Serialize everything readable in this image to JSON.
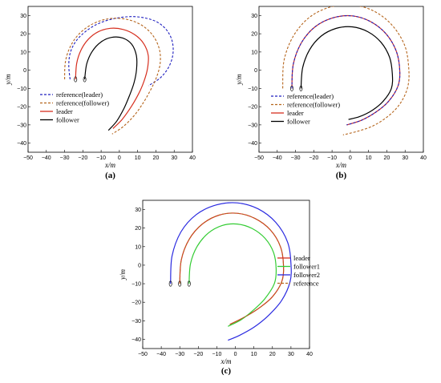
{
  "colors": {
    "reference_leader": "#1f1fbf",
    "reference_follower": "#b5651d",
    "leader": "#d62f1f",
    "follower": "#000000",
    "follower1": "#33cc33",
    "follower2": "#2a2ae0",
    "reference": "#b5651d"
  },
  "chart_data": [
    {
      "type": "line",
      "panel_label": "(a)",
      "xlabel": "x/m",
      "ylabel": "y/m",
      "xlim": [
        -50,
        40
      ],
      "ylim": [
        -45,
        35
      ],
      "xticks": [
        "−50",
        "−40",
        "−30",
        "−20",
        "−10",
        "0",
        "10",
        "20",
        "30",
        "40"
      ],
      "yticks": [
        "30",
        "20",
        "10",
        "0",
        "−10",
        "−20",
        "−30",
        "−40"
      ],
      "legend_position": "middle-left",
      "series": [
        {
          "name": "reference(leader)",
          "style": "dashed",
          "color_key": "reference_leader",
          "x": [
            -27,
            -27.7,
            -26.9,
            -23.8,
            -18.3,
            -11.2,
            -2.8,
            6.1,
            14.4,
            21.2,
            26.2,
            29.0,
            29.3,
            27.0,
            22.4,
            15.9
          ],
          "y": [
            -5,
            2.3,
            9.5,
            15.9,
            21.4,
            25.7,
            28.3,
            29.4,
            28.6,
            26.1,
            21.6,
            15.6,
            8.6,
            1.7,
            -4.2,
            -8.5
          ]
        },
        {
          "name": "reference(follower)",
          "style": "dashed",
          "color_key": "reference_follower",
          "x": [
            -30,
            -29.6,
            -27.1,
            -22.6,
            -16.4,
            -8.9,
            -0.9,
            7.0,
            13.8,
            19.0,
            22.0,
            22.3,
            20.3,
            17.0,
            13.0,
            8.0,
            2.0,
            -4.0
          ],
          "y": [
            -5,
            4.3,
            12.5,
            19.3,
            24.4,
            27.6,
            28.5,
            27.1,
            23.6,
            18.1,
            11.1,
            3.5,
            -4.0,
            -11.0,
            -18.0,
            -25.0,
            -31.0,
            -35.0
          ]
        },
        {
          "name": "leader",
          "style": "solid",
          "color_key": "leader",
          "x": [
            -24,
            -23.4,
            -21.0,
            -16.9,
            -11.4,
            -4.9,
            1.9,
            8.4,
            13.3,
            15.8,
            15.4,
            13.5,
            10.5,
            6.5,
            1.5,
            -3.5
          ],
          "y": [
            -5,
            3.6,
            11.1,
            17.1,
            21.2,
            23.0,
            22.4,
            19.5,
            14.6,
            8.1,
            1.0,
            -6.0,
            -13.0,
            -20.0,
            -27.0,
            -32.0
          ]
        },
        {
          "name": "follower",
          "style": "solid",
          "color_key": "follower",
          "x": [
            -19,
            -17.9,
            -14.9,
            -10.2,
            -4.4,
            1.8,
            6.7,
            9.3,
            9.4,
            8.0,
            5.5,
            2.5,
            -1.5,
            -6.0
          ],
          "y": [
            -5,
            3.4,
            10.3,
            15.4,
            18.0,
            17.7,
            14.3,
            8.1,
            0.5,
            -7.0,
            -14.0,
            -21.0,
            -28.0,
            -33.0
          ]
        }
      ]
    },
    {
      "type": "line",
      "panel_label": "(b)",
      "xlabel": "x/m",
      "ylabel": "y/m",
      "xlim": [
        -50,
        40
      ],
      "ylim": [
        -45,
        35
      ],
      "xticks": [
        "−50",
        "−40",
        "−30",
        "−20",
        "−10",
        "0",
        "10",
        "20",
        "30",
        "40"
      ],
      "yticks": [
        "30",
        "20",
        "10",
        "0",
        "−10",
        "−20",
        "−30",
        "−40"
      ],
      "legend_position": "lower-left",
      "series": [
        {
          "name": "reference(leader)",
          "style": "dashed",
          "color_key": "reference_leader",
          "x": [
            -32,
            -31.2,
            -26.8,
            -19.3,
            -9.6,
            1.0,
            11.2,
            19.7,
            25.3,
            27.1,
            26.0,
            21.0,
            14.0,
            6.0,
            -2.0
          ],
          "y": [
            -10,
            3.3,
            15.0,
            23.8,
            28.7,
            29.8,
            26.6,
            19.8,
            10.1,
            -0.8,
            -9.0,
            -17.0,
            -23.0,
            -27.5,
            -30.0
          ]
        },
        {
          "name": "reference(follower)",
          "style": "dashed",
          "color_key": "reference_follower",
          "x": [
            -37,
            -36.3,
            -31.2,
            -22.5,
            -11.2,
            1.0,
            12.8,
            22.8,
            29.8,
            32.0,
            31.5,
            27.5,
            21.0,
            12.5,
            4.0,
            -4.0
          ],
          "y": [
            -10,
            5.3,
            18.7,
            28.9,
            34.6,
            35.8,
            32.5,
            24.8,
            13.5,
            1.0,
            -9.0,
            -18.0,
            -25.0,
            -30.5,
            -33.5,
            -35.5
          ]
        },
        {
          "name": "leader",
          "style": "solid",
          "color_key": "leader",
          "x": [
            -32,
            -31.2,
            -26.8,
            -19.3,
            -9.6,
            1.0,
            11.2,
            19.7,
            25.3,
            27.1,
            26.0,
            21.0,
            14.0,
            6.0,
            -2.0
          ],
          "y": [
            -10,
            3.3,
            15.0,
            23.8,
            28.7,
            29.8,
            26.6,
            19.8,
            10.1,
            -0.8,
            -9.0,
            -17.0,
            -23.0,
            -27.5,
            -30.0
          ]
        },
        {
          "name": "follower",
          "style": "solid",
          "color_key": "follower",
          "x": [
            -27,
            -26.1,
            -22.3,
            -16.0,
            -7.9,
            1.0,
            9.6,
            16.8,
            21.5,
            23.0,
            22.5,
            18.0,
            12.0,
            5.0,
            -1.0
          ],
          "y": [
            -10,
            1.3,
            11.2,
            18.7,
            22.9,
            23.8,
            21.1,
            15.3,
            7.1,
            -2.0,
            -10.0,
            -17.0,
            -22.0,
            -25.5,
            -27.0
          ]
        }
      ]
    },
    {
      "type": "line",
      "panel_label": "(c)",
      "xlabel": "x/m",
      "ylabel": "y/m",
      "xlim": [
        -50,
        40
      ],
      "ylim": [
        -45,
        35
      ],
      "xticks": [
        "−50",
        "−40",
        "−30",
        "−20",
        "−10",
        "0",
        "10",
        "20",
        "30",
        "40"
      ],
      "yticks": [
        "30",
        "20",
        "10",
        "0",
        "−10",
        "−20",
        "−30",
        "−40"
      ],
      "legend_position": "middle-right",
      "series": [
        {
          "name": "leader",
          "style": "solid",
          "color_key": "leader",
          "x": [
            -30,
            -29.2,
            -24.9,
            -17.7,
            -8.8,
            1.0,
            10.6,
            18.9,
            24.4,
            26.0,
            25.0,
            20.0,
            13.0,
            5.0,
            -3.0
          ],
          "y": [
            -10,
            2.8,
            14.0,
            22.3,
            27.0,
            28.0,
            25.2,
            19.0,
            9.8,
            -0.8,
            -9.0,
            -17.0,
            -23.0,
            -28.0,
            -32.0
          ]
        },
        {
          "name": "follower1",
          "style": "solid",
          "color_key": "follower1",
          "x": [
            -25,
            -24.2,
            -20.6,
            -14.5,
            -7.1,
            1.0,
            9.0,
            16.0,
            20.6,
            22.0,
            21.0,
            16.0,
            10.0,
            3.0,
            -4.0
          ],
          "y": [
            -10,
            0.8,
            10.2,
            17.4,
            21.4,
            22.2,
            19.8,
            14.5,
            6.8,
            -2.0,
            -10.0,
            -18.0,
            -24.0,
            -29.5,
            -33.0
          ]
        },
        {
          "name": "follower2",
          "style": "solid",
          "color_key": "follower2",
          "x": [
            -35,
            -34.2,
            -29.4,
            -21.1,
            -10.4,
            1.0,
            12.2,
            21.8,
            28.2,
            30.0,
            29.5,
            25.0,
            18.0,
            10.0,
            2.0,
            -4.0
          ],
          "y": [
            -10,
            4.8,
            17.9,
            27.3,
            32.5,
            33.6,
            30.4,
            23.1,
            12.4,
            0.5,
            -9.0,
            -19.0,
            -27.0,
            -33.5,
            -38.0,
            -40.5
          ]
        },
        {
          "name": "reference",
          "style": "dashed",
          "color_key": "reference",
          "x": [
            -30,
            -29.2,
            -24.9,
            -17.7,
            -8.8,
            1.0,
            10.6,
            18.9,
            24.4,
            26.0,
            25.0,
            20.0,
            13.0,
            5.0,
            -3.0
          ],
          "y": [
            -10,
            2.8,
            14.0,
            22.3,
            27.0,
            28.0,
            25.2,
            19.0,
            9.8,
            -0.8,
            -9.0,
            -17.0,
            -23.0,
            -28.0,
            -32.0
          ]
        }
      ]
    }
  ]
}
